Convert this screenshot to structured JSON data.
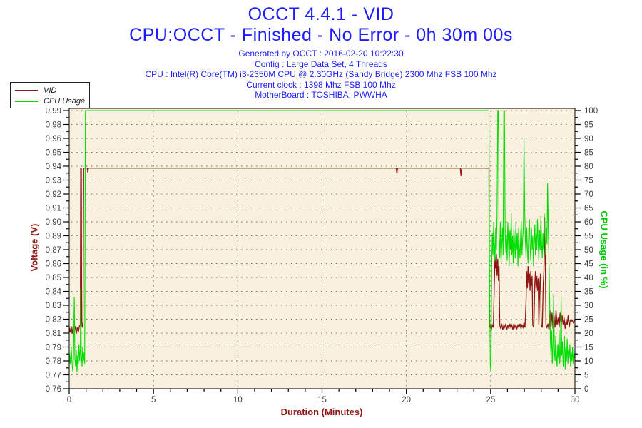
{
  "header": {
    "title_line1": "OCCT 4.4.1 - VID",
    "title_line2": "CPU:OCCT - Finished - No Error - 0h 30m 00s",
    "title_color": "#1c1cff",
    "info_color": "#1c1cff",
    "info_lines": [
      "Generated by OCCT : 2016-02-20 10:22:30",
      "Config : Large Data Set, 4 Threads",
      "CPU : Intel(R) Core(TM) i3-2350M CPU @ 2.30GHz (Sandy Bridge) 2300 Mhz FSB 100 Mhz",
      "Current clock : 1398 Mhz FSB 100 Mhz",
      "MotherBoard : TOSHIBA: PWWHA"
    ]
  },
  "legend": {
    "items": [
      {
        "label": "VID",
        "color": "#8e1815"
      },
      {
        "label": "CPU Usage",
        "color": "#00dd00"
      }
    ]
  },
  "chart_data": {
    "type": "line",
    "title": "OCCT 4.4.1 - VID",
    "plot_bg": "#faf0de",
    "grid_color": "#6b6b6b",
    "tick_label_color": "#3d3d3d",
    "x_label": "Duration (Minutes)",
    "x_range": [
      0,
      30
    ],
    "x_major_ticks": [
      0,
      5,
      10,
      15,
      20,
      25,
      30
    ],
    "x_minor_step": 1,
    "x_grid_minutes": [
      5,
      10,
      15,
      20,
      25
    ],
    "left_axis": {
      "label": "Voltage (V)",
      "color": "#8e1815",
      "min": 0.76,
      "max": 0.987,
      "tick_labels_top_to_bottom": [
        "0,99",
        "0,98",
        "0,96",
        "0,95",
        "0,94",
        "0,93",
        "0,92",
        "0,91",
        "0,90",
        "0,89",
        "0,87",
        "0,86",
        "0,85",
        "0,84",
        "0,83",
        "0,82",
        "0,81",
        "0,79",
        "0,78",
        "0,77",
        "0,76"
      ]
    },
    "right_axis": {
      "label": "CPU Usage (in %)",
      "color": "#00cc00",
      "min": 0,
      "max": 100,
      "tick_labels_top_to_bottom": [
        "100",
        "95",
        "90",
        "85",
        "80",
        "75",
        "70",
        "65",
        "60",
        "55",
        "50",
        "45",
        "40",
        "35",
        "30",
        "25",
        "20",
        "15",
        "10",
        "5",
        "0"
      ]
    },
    "series": [
      {
        "name": "VID",
        "axis": "left",
        "color": "#8e1815",
        "width": 1.3,
        "points": [
          [
            0,
            0.81
          ],
          [
            0.06,
            0.806
          ],
          [
            0.12,
            0.811
          ],
          [
            0.18,
            0.805
          ],
          [
            0.24,
            0.812
          ],
          [
            0.3,
            0.807
          ],
          [
            0.36,
            0.811
          ],
          [
            0.42,
            0.805
          ],
          [
            0.48,
            0.81
          ],
          [
            0.54,
            0.806
          ],
          [
            0.6,
            0.811
          ],
          [
            0.66,
            0.812
          ],
          [
            0.68,
            0.94
          ],
          [
            0.72,
            0.94
          ],
          [
            0.74,
            0.815
          ],
          [
            0.78,
            0.81
          ],
          [
            0.82,
            0.814
          ],
          [
            0.86,
            0.94
          ],
          [
            0.9,
            0.94
          ],
          [
            1.08,
            0.94
          ],
          [
            1.1,
            0.9365
          ],
          [
            1.14,
            0.94
          ],
          [
            19.4,
            0.94
          ],
          [
            19.44,
            0.9355
          ],
          [
            19.48,
            0.94
          ],
          [
            23.2,
            0.94
          ],
          [
            23.24,
            0.9335
          ],
          [
            23.28,
            0.94
          ],
          [
            24.9,
            0.94
          ],
          [
            24.92,
            0.81
          ],
          [
            24.98,
            0.812
          ],
          [
            25.04,
            0.808
          ],
          [
            25.1,
            0.812
          ],
          [
            25.16,
            0.81
          ],
          [
            25.22,
            0.846
          ],
          [
            25.26,
            0.868
          ],
          [
            25.3,
            0.858
          ],
          [
            25.34,
            0.87
          ],
          [
            25.38,
            0.852
          ],
          [
            25.42,
            0.866
          ],
          [
            25.46,
            0.848
          ],
          [
            25.5,
            0.86
          ],
          [
            25.54,
            0.812
          ],
          [
            25.6,
            0.809
          ],
          [
            25.66,
            0.813
          ],
          [
            25.72,
            0.808
          ],
          [
            25.78,
            0.812
          ],
          [
            25.84,
            0.81
          ],
          [
            25.9,
            0.813
          ],
          [
            25.96,
            0.808
          ],
          [
            26.02,
            0.812
          ],
          [
            26.08,
            0.809
          ],
          [
            26.14,
            0.813
          ],
          [
            26.2,
            0.81
          ],
          [
            26.26,
            0.812
          ],
          [
            26.32,
            0.808
          ],
          [
            26.38,
            0.813
          ],
          [
            26.44,
            0.81
          ],
          [
            26.5,
            0.812
          ],
          [
            26.56,
            0.809
          ],
          [
            26.62,
            0.812
          ],
          [
            26.68,
            0.81
          ],
          [
            26.74,
            0.813
          ],
          [
            26.8,
            0.809
          ],
          [
            26.86,
            0.812
          ],
          [
            26.92,
            0.81
          ],
          [
            26.98,
            0.814
          ],
          [
            27.04,
            0.81
          ],
          [
            27.1,
            0.832
          ],
          [
            27.14,
            0.856
          ],
          [
            27.18,
            0.842
          ],
          [
            27.22,
            0.86
          ],
          [
            27.26,
            0.846
          ],
          [
            27.3,
            0.854
          ],
          [
            27.34,
            0.84
          ],
          [
            27.38,
            0.856
          ],
          [
            27.42,
            0.844
          ],
          [
            27.46,
            0.852
          ],
          [
            27.5,
            0.812
          ],
          [
            27.56,
            0.81
          ],
          [
            27.62,
            0.846
          ],
          [
            27.66,
            0.856
          ],
          [
            27.7,
            0.842
          ],
          [
            27.74,
            0.852
          ],
          [
            27.78,
            0.84
          ],
          [
            27.82,
            0.85
          ],
          [
            27.86,
            0.812
          ],
          [
            27.92,
            0.846
          ],
          [
            27.96,
            0.854
          ],
          [
            28.0,
            0.812
          ],
          [
            28.06,
            0.81
          ],
          [
            28.12,
            0.846
          ],
          [
            28.16,
            0.856
          ],
          [
            28.2,
            0.9
          ],
          [
            28.24,
            0.868
          ],
          [
            28.28,
            0.812
          ],
          [
            28.34,
            0.81
          ],
          [
            28.4,
            0.813
          ],
          [
            28.46,
            0.808
          ],
          [
            28.52,
            0.824
          ],
          [
            28.58,
            0.81
          ],
          [
            28.64,
            0.822
          ],
          [
            28.7,
            0.809
          ],
          [
            28.76,
            0.82
          ],
          [
            28.82,
            0.81
          ],
          [
            28.88,
            0.824
          ],
          [
            28.94,
            0.812
          ],
          [
            29.0,
            0.818
          ],
          [
            29.06,
            0.81
          ],
          [
            29.12,
            0.822
          ],
          [
            29.18,
            0.809
          ],
          [
            29.24,
            0.82
          ],
          [
            29.3,
            0.812
          ],
          [
            29.36,
            0.818
          ],
          [
            29.42,
            0.809
          ],
          [
            29.48,
            0.816
          ],
          [
            29.54,
            0.812
          ],
          [
            29.6,
            0.82
          ],
          [
            29.66,
            0.81
          ],
          [
            29.72,
            0.816
          ],
          [
            29.78,
            0.815
          ],
          [
            29.84,
            0.816
          ],
          [
            29.9,
            0.814
          ],
          [
            29.96,
            0.816
          ],
          [
            30,
            0.815
          ]
        ]
      },
      {
        "name": "CPU Usage",
        "axis": "right",
        "color": "#00dd00",
        "width": 1.1,
        "points": [
          [
            0,
            13
          ],
          [
            0.06,
            9
          ],
          [
            0.12,
            15
          ],
          [
            0.18,
            8
          ],
          [
            0.22,
            6
          ],
          [
            0.26,
            12
          ],
          [
            0.3,
            33
          ],
          [
            0.34,
            11
          ],
          [
            0.38,
            8
          ],
          [
            0.42,
            14
          ],
          [
            0.46,
            6
          ],
          [
            0.5,
            12
          ],
          [
            0.54,
            9
          ],
          [
            0.58,
            16
          ],
          [
            0.62,
            10
          ],
          [
            0.66,
            14
          ],
          [
            0.68,
            36
          ],
          [
            0.72,
            12
          ],
          [
            0.76,
            8
          ],
          [
            0.8,
            15
          ],
          [
            0.84,
            10
          ],
          [
            0.88,
            13
          ],
          [
            0.92,
            9
          ],
          [
            0.96,
            100
          ],
          [
            24.9,
            100
          ],
          [
            24.94,
            35
          ],
          [
            24.98,
            8
          ],
          [
            25.02,
            6
          ],
          [
            25.06,
            44
          ],
          [
            25.1,
            56
          ],
          [
            25.14,
            48
          ],
          [
            25.18,
            60
          ],
          [
            25.22,
            52
          ],
          [
            25.26,
            46
          ],
          [
            25.3,
            58
          ],
          [
            25.34,
            50
          ],
          [
            25.38,
            62
          ],
          [
            25.42,
            100
          ],
          [
            25.46,
            100
          ],
          [
            25.5,
            54
          ],
          [
            25.54,
            47
          ],
          [
            25.58,
            60
          ],
          [
            25.62,
            45
          ],
          [
            25.66,
            52
          ],
          [
            25.7,
            58
          ],
          [
            25.74,
            48
          ],
          [
            25.78,
            100
          ],
          [
            25.82,
            100
          ],
          [
            25.86,
            56
          ],
          [
            25.9,
            49
          ],
          [
            25.94,
            55
          ],
          [
            25.98,
            46
          ],
          [
            26.02,
            60
          ],
          [
            26.06,
            52
          ],
          [
            26.1,
            44
          ],
          [
            26.14,
            57
          ],
          [
            26.18,
            50
          ],
          [
            26.22,
            63
          ],
          [
            26.26,
            48
          ],
          [
            26.3,
            55
          ],
          [
            26.34,
            45
          ],
          [
            26.38,
            58
          ],
          [
            26.42,
            52
          ],
          [
            26.46,
            47
          ],
          [
            26.5,
            60
          ],
          [
            26.54,
            50
          ],
          [
            26.58,
            56
          ],
          [
            26.62,
            44
          ],
          [
            26.66,
            58
          ],
          [
            26.7,
            51
          ],
          [
            26.74,
            47
          ],
          [
            26.78,
            55
          ],
          [
            26.82,
            60
          ],
          [
            26.86,
            48
          ],
          [
            26.9,
            54
          ],
          [
            26.94,
            58
          ],
          [
            26.98,
            90
          ],
          [
            27.02,
            64
          ],
          [
            27.06,
            54
          ],
          [
            27.1,
            47
          ],
          [
            27.14,
            58
          ],
          [
            27.18,
            50
          ],
          [
            27.22,
            45
          ],
          [
            27.26,
            56
          ],
          [
            27.3,
            61
          ],
          [
            27.34,
            52
          ],
          [
            27.38,
            46
          ],
          [
            27.42,
            58
          ],
          [
            27.46,
            50
          ],
          [
            27.5,
            55
          ],
          [
            27.54,
            44
          ],
          [
            27.58,
            52
          ],
          [
            27.62,
            59
          ],
          [
            27.66,
            48
          ],
          [
            27.7,
            56
          ],
          [
            27.74,
            50
          ],
          [
            27.78,
            61
          ],
          [
            27.82,
            52
          ],
          [
            27.86,
            46
          ],
          [
            27.9,
            57
          ],
          [
            27.94,
            50
          ],
          [
            27.98,
            62
          ],
          [
            28.02,
            53
          ],
          [
            28.06,
            47
          ],
          [
            28.1,
            56
          ],
          [
            28.14,
            50
          ],
          [
            28.18,
            63
          ],
          [
            28.22,
            55
          ],
          [
            28.26,
            48
          ],
          [
            28.3,
            58
          ],
          [
            28.34,
            52
          ],
          [
            28.38,
            74
          ],
          [
            28.42,
            57
          ],
          [
            28.46,
            46
          ],
          [
            28.5,
            32
          ],
          [
            28.54,
            18
          ],
          [
            28.58,
            12
          ],
          [
            28.62,
            21
          ],
          [
            28.66,
            9
          ],
          [
            28.7,
            16
          ],
          [
            28.74,
            34
          ],
          [
            28.78,
            14
          ],
          [
            28.82,
            10
          ],
          [
            28.86,
            19
          ],
          [
            28.9,
            12
          ],
          [
            28.94,
            8
          ],
          [
            28.98,
            16
          ],
          [
            29.02,
            11
          ],
          [
            29.06,
            21
          ],
          [
            29.1,
            9
          ],
          [
            29.14,
            14
          ],
          [
            29.18,
            33
          ],
          [
            29.22,
            12
          ],
          [
            29.26,
            17
          ],
          [
            29.3,
            8
          ],
          [
            29.34,
            13
          ],
          [
            29.38,
            19
          ],
          [
            29.42,
            7
          ],
          [
            29.46,
            15
          ],
          [
            29.5,
            10
          ],
          [
            29.54,
            18
          ],
          [
            29.58,
            9
          ],
          [
            29.62,
            14
          ],
          [
            29.66,
            11
          ],
          [
            29.7,
            16
          ],
          [
            29.74,
            8
          ],
          [
            29.78,
            13
          ],
          [
            29.82,
            10
          ],
          [
            29.86,
            15
          ],
          [
            29.9,
            9
          ],
          [
            29.94,
            13
          ],
          [
            29.98,
            11
          ],
          [
            30,
            12
          ]
        ]
      }
    ]
  }
}
